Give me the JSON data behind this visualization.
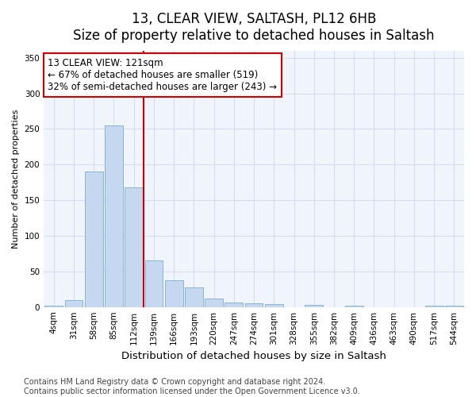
{
  "title": "13, CLEAR VIEW, SALTASH, PL12 6HB",
  "subtitle": "Size of property relative to detached houses in Saltash",
  "xlabel": "Distribution of detached houses by size in Saltash",
  "ylabel": "Number of detached properties",
  "categories": [
    "4sqm",
    "31sqm",
    "58sqm",
    "85sqm",
    "112sqm",
    "139sqm",
    "166sqm",
    "193sqm",
    "220sqm",
    "247sqm",
    "274sqm",
    "301sqm",
    "328sqm",
    "355sqm",
    "382sqm",
    "409sqm",
    "436sqm",
    "463sqm",
    "490sqm",
    "517sqm",
    "544sqm"
  ],
  "values": [
    2,
    10,
    190,
    255,
    168,
    65,
    37,
    28,
    12,
    6,
    5,
    4,
    0,
    3,
    0,
    2,
    0,
    0,
    0,
    2,
    2
  ],
  "bar_color": "#c5d8ef",
  "bar_edge_color": "#8ab4d4",
  "vline_x": 4.5,
  "vline_color": "#cc0000",
  "annotation_line1": "13 CLEAR VIEW: 121sqm",
  "annotation_line2": "← 67% of detached houses are smaller (519)",
  "annotation_line3": "32% of semi-detached houses are larger (243) →",
  "annotation_box_color": "#ffffff",
  "annotation_box_edge": "#cc0000",
  "annotation_fontsize": 8.5,
  "ylim": [
    0,
    360
  ],
  "yticks": [
    0,
    50,
    100,
    150,
    200,
    250,
    300,
    350
  ],
  "grid_color": "#d4dded",
  "background_color": "#eef2fa",
  "plot_bg_color": "#f0f4fb",
  "footer": "Contains HM Land Registry data © Crown copyright and database right 2024.\nContains public sector information licensed under the Open Government Licence v3.0.",
  "title_fontsize": 12,
  "xlabel_fontsize": 9.5,
  "ylabel_fontsize": 8,
  "tick_fontsize": 7.5,
  "footer_fontsize": 7
}
